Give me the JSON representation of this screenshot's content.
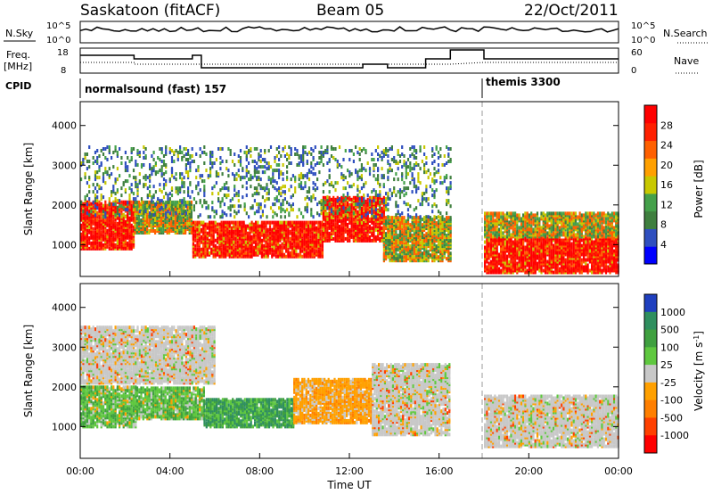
{
  "header": {
    "station": "Saskatoon (fitACF)",
    "beam": "Beam 05",
    "date": "22/Oct/2011"
  },
  "panel_labels": {
    "nsky": "N.Sky",
    "nsearch": "N.Search",
    "freq_line1": "Freq.",
    "freq_line2": "[MHz]",
    "nave": "Nave",
    "cpid": "CPID",
    "nsky_ticks": [
      "10^5",
      "10^0"
    ],
    "nsearch_ticks": [
      "10^5",
      "10^0"
    ],
    "freq_ticks": [
      "18",
      "8"
    ],
    "nave_ticks": [
      "60",
      "0"
    ]
  },
  "cpid_segments": [
    {
      "label": "normalsound (fast) 157",
      "start_hour": 0
    },
    {
      "label": "themis 3300",
      "start_hour": 18.0
    }
  ],
  "chart_data": [
    {
      "type": "heatmap",
      "name": "power",
      "xlabel": "",
      "ylabel": "Slant Range [km]",
      "xlim": [
        0,
        24
      ],
      "ylim": [
        200,
        4600
      ],
      "yticks": [
        1000,
        2000,
        3000,
        4000
      ],
      "colorbar": {
        "label": "Power [dB]",
        "ticks": [
          "4",
          "8",
          "12",
          "16",
          "20",
          "24",
          "28"
        ],
        "colors": [
          "#0000ff",
          "#2f4fbf",
          "#3f7f3f",
          "#44a04a",
          "#c8c800",
          "#ffa000",
          "#ff6000",
          "#ff2000",
          "#ff0000"
        ]
      },
      "regions": [
        {
          "x0": 0.0,
          "x1": 2.4,
          "y0": 900,
          "y1": 2100,
          "level": "high"
        },
        {
          "x0": 2.4,
          "x1": 5.0,
          "y0": 1300,
          "y1": 2100,
          "level": "mid"
        },
        {
          "x0": 5.0,
          "x1": 10.8,
          "y0": 700,
          "y1": 1600,
          "level": "high"
        },
        {
          "x0": 10.8,
          "x1": 13.5,
          "y0": 1100,
          "y1": 2200,
          "level": "high"
        },
        {
          "x0": 13.5,
          "x1": 16.5,
          "y0": 600,
          "y1": 1700,
          "level": "mid"
        },
        {
          "x0": 18.0,
          "x1": 24.0,
          "y0": 300,
          "y1": 1200,
          "level": "high"
        },
        {
          "x0": 18.0,
          "x1": 24.0,
          "y0": 1200,
          "y1": 1800,
          "level": "mid"
        },
        {
          "x0": 0.0,
          "x1": 16.5,
          "y0": 1700,
          "y1": 3500,
          "level": "low"
        }
      ]
    },
    {
      "type": "heatmap",
      "name": "velocity",
      "xlabel": "Time UT",
      "ylabel": "Slant Range [km]",
      "xlim": [
        0,
        24
      ],
      "ylim": [
        200,
        4600
      ],
      "xticks": [
        "00:00",
        "04:00",
        "08:00",
        "12:00",
        "16:00",
        "20:00",
        "00:00"
      ],
      "yticks": [
        1000,
        2000,
        3000,
        4000
      ],
      "colorbar": {
        "label": "Velocity [m s^-1]",
        "ticks": [
          "1000",
          "500",
          "100",
          "25",
          "-25",
          "-100",
          "-500",
          "-1000"
        ],
        "colors": [
          "#1f3fbf",
          "#2f8f5f",
          "#3fa03f",
          "#5fc83f",
          "#c8c8c8",
          "#ffa000",
          "#ff7f00",
          "#ff4000",
          "#ff0000"
        ]
      },
      "regions": [
        {
          "x0": 0.0,
          "x1": 2.5,
          "y0": 1000,
          "y1": 2000,
          "level": "pos"
        },
        {
          "x0": 2.5,
          "x1": 5.5,
          "y0": 1200,
          "y1": 2000,
          "level": "pos"
        },
        {
          "x0": 5.5,
          "x1": 9.5,
          "y0": 1000,
          "y1": 1700,
          "level": "pos2"
        },
        {
          "x0": 9.5,
          "x1": 13.0,
          "y0": 1100,
          "y1": 2200,
          "level": "neg"
        },
        {
          "x0": 13.0,
          "x1": 16.5,
          "y0": 800,
          "y1": 2600,
          "level": "zero"
        },
        {
          "x0": 0.0,
          "x1": 6.0,
          "y0": 2100,
          "y1": 3500,
          "level": "zero"
        },
        {
          "x0": 18.0,
          "x1": 24.0,
          "y0": 500,
          "y1": 1800,
          "level": "zero"
        }
      ]
    }
  ]
}
